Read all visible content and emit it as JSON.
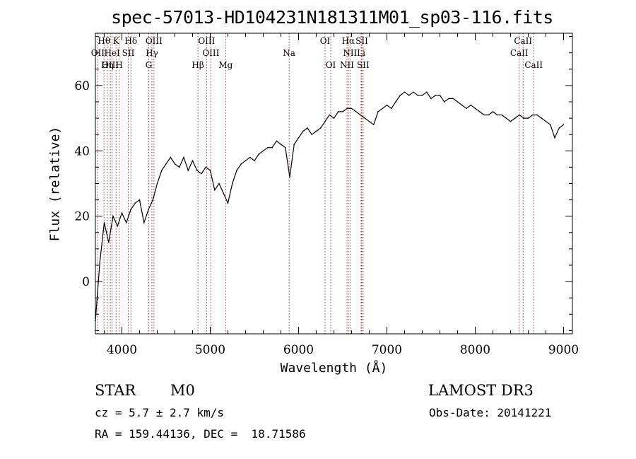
{
  "chart_data": {
    "type": "line",
    "title": "spec-57013-HD104231N181311M01_sp03-116.fits",
    "xlabel": "Wavelength (Å)",
    "ylabel": "Flux (relative)",
    "xlim": [
      3700,
      9100
    ],
    "ylim": [
      -16,
      76
    ],
    "xticks": [
      4000,
      5000,
      6000,
      7000,
      8000,
      9000
    ],
    "yticks": [
      0,
      20,
      40,
      60
    ],
    "series": [
      {
        "name": "flux",
        "x": [
          3700,
          3750,
          3800,
          3850,
          3900,
          3950,
          4000,
          4050,
          4100,
          4150,
          4200,
          4250,
          4300,
          4350,
          4400,
          4450,
          4500,
          4550,
          4600,
          4650,
          4700,
          4750,
          4800,
          4850,
          4900,
          4950,
          5000,
          5050,
          5100,
          5150,
          5200,
          5250,
          5300,
          5350,
          5400,
          5450,
          5500,
          5550,
          5600,
          5650,
          5700,
          5750,
          5800,
          5850,
          5900,
          5950,
          6000,
          6050,
          6100,
          6150,
          6200,
          6250,
          6300,
          6350,
          6400,
          6450,
          6500,
          6550,
          6600,
          6650,
          6700,
          6750,
          6800,
          6850,
          6900,
          6950,
          7000,
          7050,
          7100,
          7150,
          7200,
          7250,
          7300,
          7350,
          7400,
          7450,
          7500,
          7550,
          7600,
          7650,
          7700,
          7750,
          7800,
          7850,
          7900,
          7950,
          8000,
          8050,
          8100,
          8150,
          8200,
          8250,
          8300,
          8350,
          8400,
          8450,
          8500,
          8550,
          8600,
          8650,
          8700,
          8750,
          8800,
          8850,
          8900,
          8950,
          9000
        ],
        "values": [
          -12,
          6,
          18,
          12,
          20,
          17,
          21,
          18,
          22,
          24,
          25,
          18,
          22,
          25,
          30,
          34,
          36,
          38,
          36,
          35,
          38,
          34,
          37,
          34,
          33,
          35,
          34,
          28,
          30,
          27,
          24,
          30,
          34,
          36,
          37,
          38,
          37,
          39,
          40,
          41,
          41,
          43,
          42,
          41,
          32,
          42,
          44,
          46,
          47,
          45,
          46,
          47,
          49,
          51,
          50,
          52,
          52,
          53,
          53,
          52,
          51,
          50,
          49,
          48,
          52,
          53,
          54,
          53,
          55,
          57,
          58,
          57,
          58,
          57,
          57,
          58,
          56,
          57,
          57,
          55,
          56,
          56,
          55,
          54,
          53,
          54,
          53,
          52,
          51,
          51,
          52,
          51,
          51,
          50,
          49,
          50,
          51,
          50,
          50,
          51,
          51,
          50,
          49,
          48,
          44,
          47,
          48
        ]
      }
    ],
    "line_markers": [
      {
        "label": "Hθ",
        "wl": 3798,
        "row": 1
      },
      {
        "label": "K",
        "wl": 3934,
        "row": 1
      },
      {
        "label": "Hδ",
        "wl": 4102,
        "row": 1
      },
      {
        "label": "OIII",
        "wl": 4363,
        "row": 1
      },
      {
        "label": "OIII",
        "wl": 4959,
        "row": 1
      },
      {
        "label": "OI",
        "wl": 6300,
        "row": 1
      },
      {
        "label": "Hα",
        "wl": 6563,
        "row": 1
      },
      {
        "label": "SII",
        "wl": 6716,
        "row": 1
      },
      {
        "label": "CaII",
        "wl": 8542,
        "row": 1
      },
      {
        "label": "OII",
        "wl": 3727,
        "row": 2
      },
      {
        "label": "HeI",
        "wl": 3889,
        "row": 2
      },
      {
        "label": "SII",
        "wl": 4072,
        "row": 2
      },
      {
        "label": "Hγ",
        "wl": 4340,
        "row": 2
      },
      {
        "label": "OIII",
        "wl": 5007,
        "row": 2
      },
      {
        "label": "Na",
        "wl": 5893,
        "row": 2
      },
      {
        "label": "NII",
        "wl": 6583,
        "row": 2
      },
      {
        "label": "Li",
        "wl": 6708,
        "row": 2
      },
      {
        "label": "CaII",
        "wl": 8498,
        "row": 2
      },
      {
        "label": "OIII",
        "wl": 3869,
        "row": 3
      },
      {
        "label": "Hη",
        "wl": 3835,
        "row": 3
      },
      {
        "label": "H",
        "wl": 3969,
        "row": 3
      },
      {
        "label": "G",
        "wl": 4304,
        "row": 3
      },
      {
        "label": "Hβ",
        "wl": 4861,
        "row": 3
      },
      {
        "label": "Mg",
        "wl": 5175,
        "row": 3
      },
      {
        "label": "OI",
        "wl": 6364,
        "row": 3
      },
      {
        "label": "NII",
        "wl": 6548,
        "row": 3
      },
      {
        "label": "SII",
        "wl": 6731,
        "row": 3
      },
      {
        "label": "CaII",
        "wl": 8662,
        "row": 3
      }
    ]
  },
  "info": {
    "class": "STAR",
    "subclass": "M0",
    "survey": "LAMOST DR3",
    "cz": "cz = 5.7 ± 2.7 km/s",
    "obs_date": "Obs-Date: 20141221",
    "coords": "RA = 159.44136, DEC =  18.71586"
  }
}
